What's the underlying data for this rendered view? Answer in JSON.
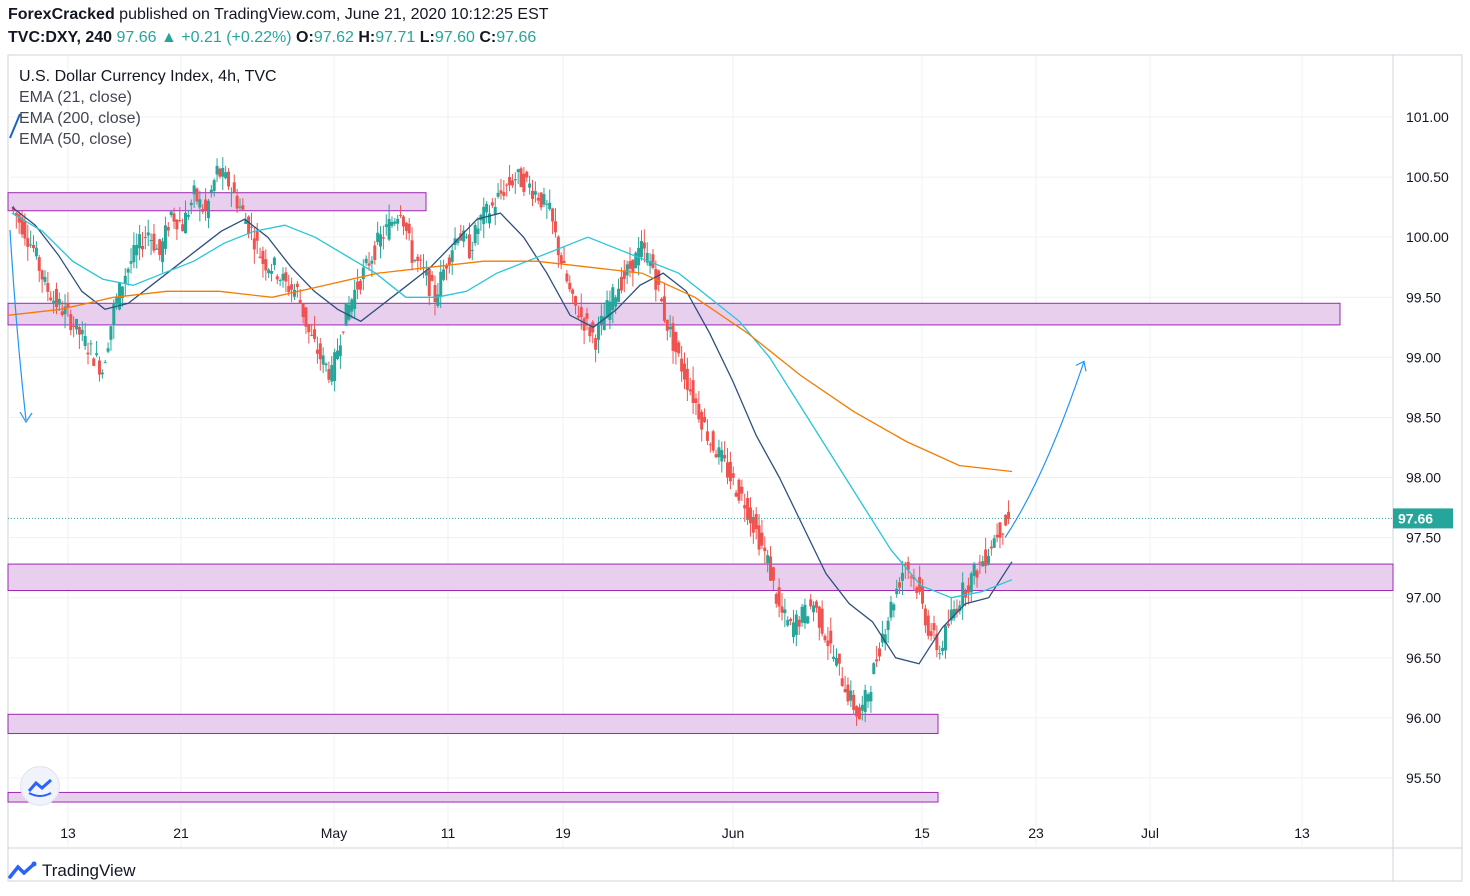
{
  "header": {
    "author": "ForexCracked",
    "published_text": "published on TradingView.com, June 21, 2020 10:12:25 EST",
    "symbol": "TVC:DXY, 240",
    "last": "97.66",
    "change_arrow": "▲",
    "change": "+0.21 (+0.22%)",
    "o_label": "O:",
    "o_value": "97.62",
    "h_label": "H:",
    "h_value": "97.71",
    "l_label": "L:",
    "l_value": "97.60",
    "c_label": "C:",
    "c_value": "97.66"
  },
  "legend": {
    "title": "U.S. Dollar Currency Index, 4h, TVC",
    "ema21": "EMA (21, close)",
    "ema200": "EMA (200, close)",
    "ema50": "EMA (50, close)"
  },
  "brand": {
    "name": "TradingView",
    "icon": "tradingview-logo-icon"
  },
  "colors": {
    "up": "#26a69a",
    "down": "#ef5350",
    "ema21": "#2f4f7f",
    "ema50": "#26c6da",
    "ema200": "#f57c00",
    "zone_fill": "#e9cfee",
    "zone_stroke": "#9c27b0",
    "price_tag": "#26a69a",
    "arrow": "#2196f3"
  },
  "chart_data": {
    "type": "candlestick",
    "symbol": "TVC:DXY",
    "timeframe": "4h",
    "y_axis": {
      "ticks": [
        "101.00",
        "100.50",
        "100.00",
        "99.50",
        "99.00",
        "98.50",
        "98.00",
        "97.50",
        "97.00",
        "96.50",
        "96.00",
        "95.50"
      ],
      "range": [
        95.2,
        101.5
      ]
    },
    "x_axis": {
      "tick_labels": [
        "13",
        "21",
        "May",
        "11",
        "19",
        "Jun",
        "15",
        "23",
        "Jul",
        "13"
      ]
    },
    "last_price": "97.66",
    "path_closes": [
      100.25,
      100.1,
      99.9,
      99.6,
      99.45,
      99.35,
      99.2,
      99.05,
      98.9,
      99.4,
      99.7,
      99.9,
      100.05,
      99.85,
      100.2,
      100.1,
      100.35,
      100.2,
      100.55,
      100.45,
      100.25,
      100.05,
      99.8,
      99.75,
      99.6,
      99.55,
      99.2,
      99.0,
      98.85,
      99.3,
      99.55,
      99.75,
      99.95,
      100.1,
      100.25,
      99.85,
      99.7,
      99.5,
      99.8,
      100.05,
      99.9,
      100.15,
      100.25,
      100.4,
      100.5,
      100.45,
      100.35,
      100.2,
      99.8,
      99.45,
      99.3,
      99.15,
      99.4,
      99.6,
      99.75,
      99.9,
      99.75,
      99.35,
      99.05,
      98.8,
      98.55,
      98.3,
      98.15,
      97.95,
      97.8,
      97.55,
      97.3,
      96.9,
      96.75,
      96.85,
      96.95,
      96.7,
      96.45,
      96.2,
      96.0,
      96.3,
      96.7,
      97.0,
      97.3,
      97.1,
      96.75,
      96.55,
      96.85,
      97.05,
      97.2,
      97.35,
      97.55,
      97.66
    ],
    "zones": [
      {
        "name": "zone-top",
        "y_low": 100.22,
        "y_high": 100.37
      },
      {
        "name": "zone-99-4",
        "y_low": 99.27,
        "y_high": 99.45
      },
      {
        "name": "zone-97-2",
        "y_low": 97.06,
        "y_high": 97.28
      },
      {
        "name": "zone-95-9",
        "y_low": 95.87,
        "y_high": 96.03
      },
      {
        "name": "zone-95-3",
        "y_low": 95.3,
        "y_high": 95.38
      }
    ],
    "series": [
      {
        "name": "EMA (21, close)",
        "values": [
          100.25,
          100.1,
          99.85,
          99.55,
          99.4,
          99.45,
          99.6,
          99.75,
          99.9,
          100.05,
          100.15,
          100.0,
          99.75,
          99.55,
          99.4,
          99.3,
          99.45,
          99.6,
          99.75,
          99.95,
          100.15,
          100.2,
          100.0,
          99.7,
          99.35,
          99.25,
          99.4,
          99.6,
          99.7,
          99.55,
          99.2,
          98.8,
          98.35,
          98.0,
          97.6,
          97.2,
          96.95,
          96.8,
          96.5,
          96.45,
          96.75,
          96.95,
          97.0,
          97.3
        ]
      },
      {
        "name": "EMA (50, close)",
        "values": [
          100.2,
          100.05,
          99.8,
          99.65,
          99.6,
          99.7,
          99.8,
          99.95,
          100.05,
          100.1,
          100.0,
          99.85,
          99.7,
          99.5,
          99.5,
          99.55,
          99.7,
          99.8,
          99.9,
          100.0,
          99.9,
          99.8,
          99.7,
          99.5,
          99.3,
          99.0,
          98.6,
          98.2,
          97.8,
          97.4,
          97.1,
          97.0,
          97.05,
          97.15
        ]
      },
      {
        "name": "EMA (200, close)",
        "values": [
          99.35,
          99.4,
          99.5,
          99.55,
          99.55,
          99.5,
          99.6,
          99.7,
          99.75,
          99.8,
          99.8,
          99.75,
          99.7,
          99.5,
          99.2,
          98.85,
          98.55,
          98.3,
          98.1,
          98.05
        ]
      }
    ],
    "projection_arrow": {
      "from_price": 97.5,
      "to_price": 98.8,
      "name": "projected-up-arrow"
    }
  }
}
